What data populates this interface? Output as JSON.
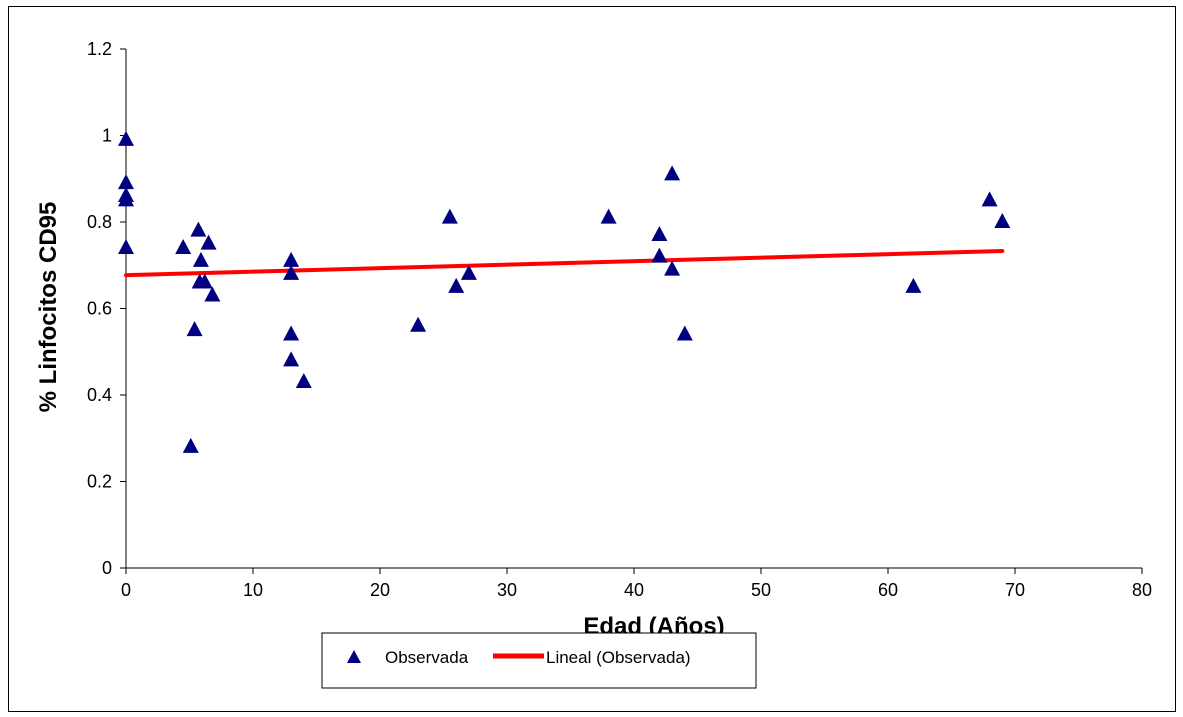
{
  "chart_data": {
    "type": "scatter",
    "xlabel": "Edad (Años)",
    "ylabel": "% Linfocitos CD95",
    "xlim": [
      0,
      80
    ],
    "ylim": [
      0,
      1.2
    ],
    "xticks": [
      0,
      10,
      20,
      30,
      40,
      50,
      60,
      70,
      80
    ],
    "yticks": [
      0,
      0.2,
      0.4,
      0.6,
      0.8,
      1,
      1.2
    ],
    "xtick_labels": [
      "0",
      "10",
      "20",
      "30",
      "40",
      "50",
      "60",
      "70",
      "80"
    ],
    "ytick_labels": [
      "0",
      "0.2",
      "0.4",
      "0.6",
      "0.8",
      "1",
      "1.2"
    ],
    "grid": false,
    "legend_position": "bottom-center",
    "series": [
      {
        "name": "Observada",
        "marker": "triangle",
        "color": "#000080",
        "points": [
          [
            0,
            0.99
          ],
          [
            0,
            0.89
          ],
          [
            0,
            0.86
          ],
          [
            0,
            0.85
          ],
          [
            0,
            0.74
          ],
          [
            4.5,
            0.74
          ],
          [
            5.1,
            0.28
          ],
          [
            5.4,
            0.55
          ],
          [
            5.7,
            0.78
          ],
          [
            5.9,
            0.71
          ],
          [
            5.8,
            0.66
          ],
          [
            6.2,
            0.66
          ],
          [
            6.5,
            0.75
          ],
          [
            6.8,
            0.63
          ],
          [
            13,
            0.71
          ],
          [
            13,
            0.68
          ],
          [
            13,
            0.54
          ],
          [
            13,
            0.48
          ],
          [
            14,
            0.43
          ],
          [
            23,
            0.56
          ],
          [
            25.5,
            0.81
          ],
          [
            26,
            0.65
          ],
          [
            27,
            0.68
          ],
          [
            38,
            0.81
          ],
          [
            42,
            0.77
          ],
          [
            42,
            0.72
          ],
          [
            43,
            0.91
          ],
          [
            43,
            0.69
          ],
          [
            44,
            0.54
          ],
          [
            62,
            0.65
          ],
          [
            68,
            0.85
          ],
          [
            69,
            0.8
          ]
        ]
      },
      {
        "name": "Lineal (Observada)",
        "type": "line",
        "color": "#ff0000",
        "points": [
          [
            0,
            0.677
          ],
          [
            69,
            0.733
          ]
        ]
      }
    ],
    "legend": [
      "Observada",
      "Lineal (Observada)"
    ]
  }
}
